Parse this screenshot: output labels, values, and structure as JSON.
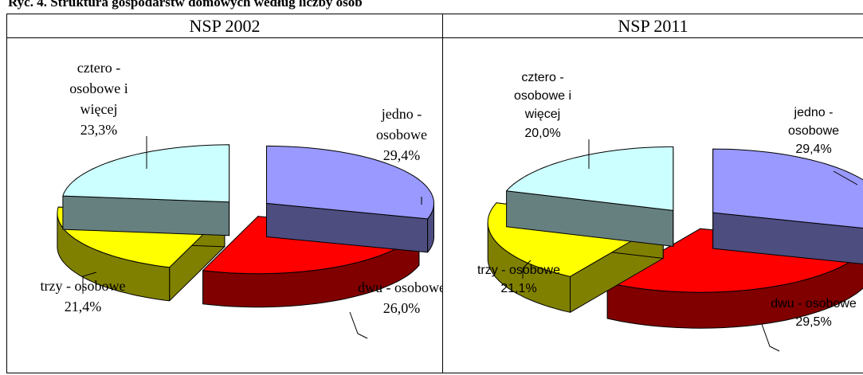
{
  "caption": "Ryc. 4. Struktura gospodarstw domowych według liczby osób",
  "chart_data": [
    {
      "type": "pie",
      "title": "NSP 2002",
      "categories": [
        "jedno - osobowe",
        "dwu - osobowe",
        "trzy - osobowe",
        "cztero - osobowe i więcej"
      ],
      "values": [
        29.4,
        26.0,
        21.4,
        23.3
      ],
      "value_labels": [
        "29,4%",
        "26,0%",
        "21,4%",
        "23,3%"
      ],
      "colors": [
        "#9999ff",
        "#ff0000",
        "#ffff00",
        "#ccffff"
      ],
      "side_colors": [
        "#4d4d80",
        "#800000",
        "#808000",
        "#668080"
      ]
    },
    {
      "type": "pie",
      "title": "NSP 2011",
      "categories": [
        "jedno - osobowe",
        "dwu - osobowe",
        "trzy - osobowe",
        "cztero - osobowe i więcej"
      ],
      "values": [
        29.4,
        29.5,
        21.1,
        20.0
      ],
      "value_labels": [
        "29,4%",
        "29,5%",
        "21,1%",
        "20,0%"
      ],
      "colors": [
        "#9999ff",
        "#ff0000",
        "#ffff00",
        "#ccffff"
      ],
      "side_colors": [
        "#4d4d80",
        "#800000",
        "#808000",
        "#668080"
      ]
    }
  ]
}
